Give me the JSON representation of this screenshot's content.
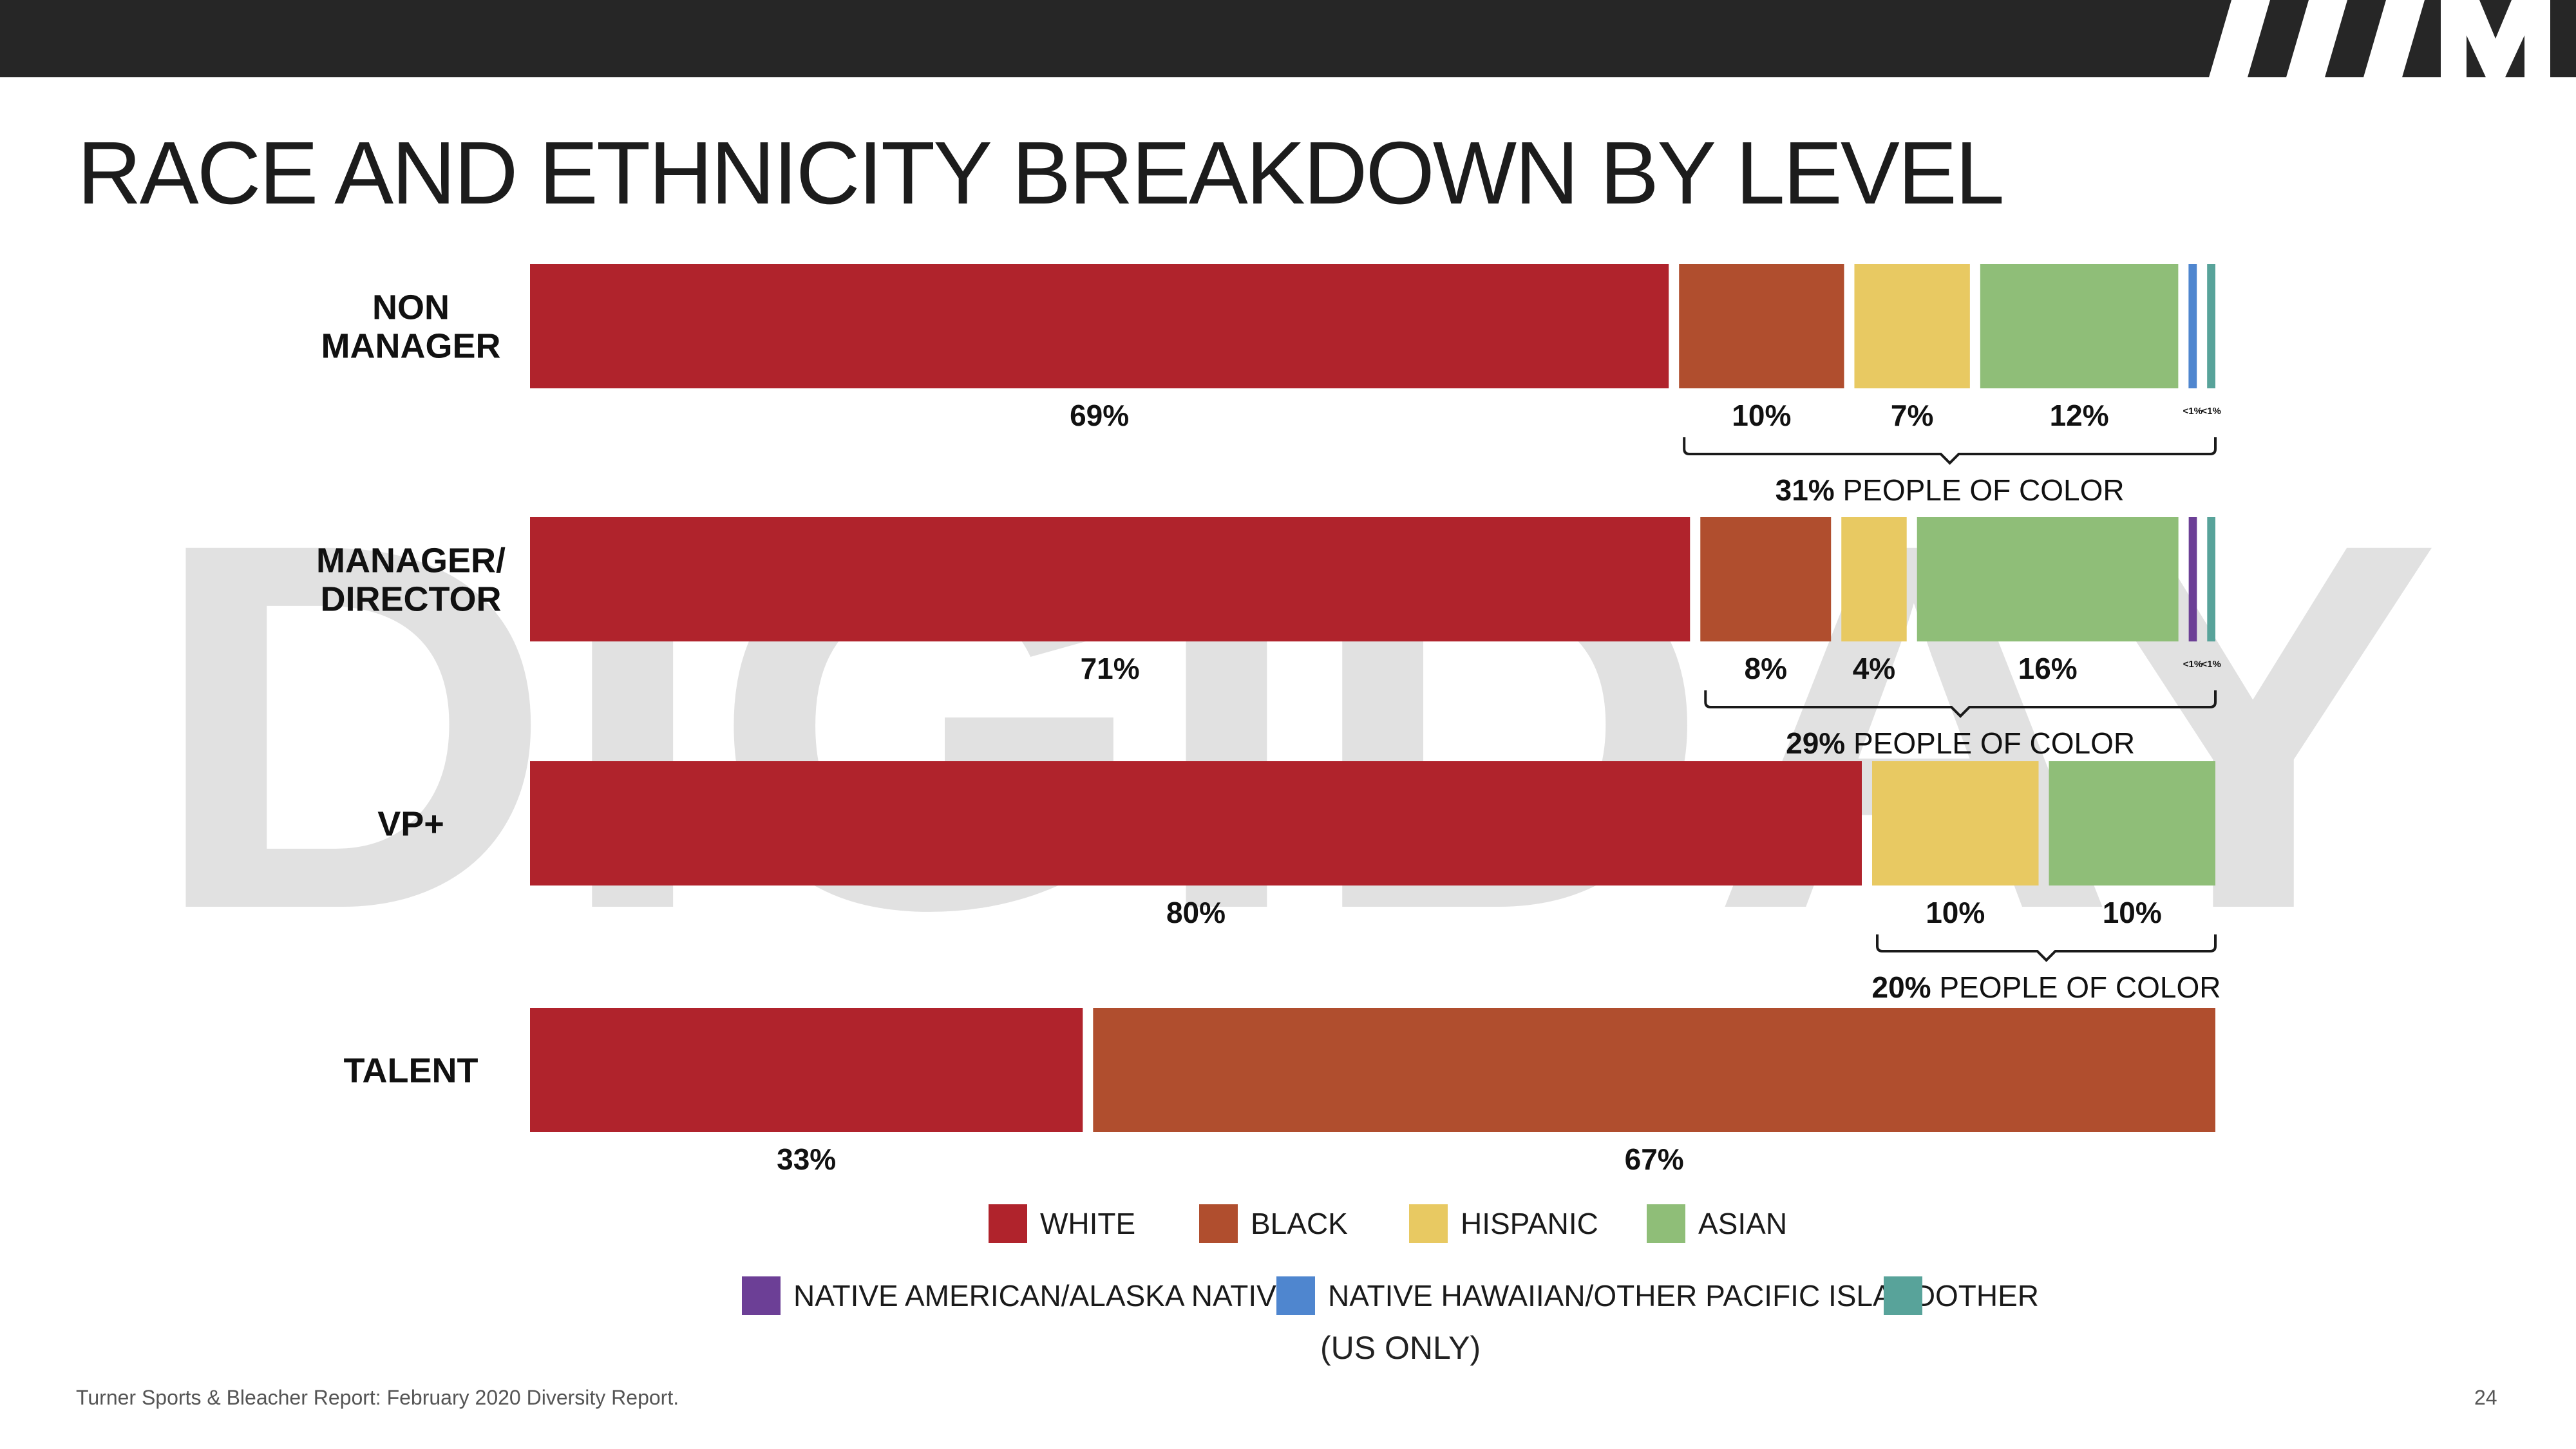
{
  "title": "RACE AND ETHNICITY BREAKDOWN BY LEVEL",
  "watermark": "DIGIDAY",
  "footer": {
    "source": "Turner Sports & Bleacher Report: February 2020 Diversity Report.",
    "page_number": "24",
    "note": "(US ONLY)"
  },
  "colors": {
    "topbar": "#262626",
    "white": "#B0232C",
    "black": "#B04E2E",
    "hispanic": "#E8C962",
    "asian": "#8FBE78",
    "native_american": "#6C3F96",
    "native_hawaiian": "#4F86CF",
    "other": "#58A39A"
  },
  "chart_data": {
    "type": "bar",
    "orientation": "horizontal",
    "stacked": true,
    "normalized_percent": true,
    "title": "RACE AND ETHNICITY BREAKDOWN BY LEVEL",
    "categories": [
      "NON MANAGER",
      "MANAGER/ DIRECTOR",
      "VP+",
      "TALENT"
    ],
    "category_lines": [
      [
        "NON",
        "MANAGER"
      ],
      [
        "MANAGER/",
        "DIRECTOR"
      ],
      [
        "VP+"
      ],
      [
        "TALENT"
      ]
    ],
    "series": [
      {
        "name": "WHITE",
        "key": "white",
        "values": [
          69,
          71,
          80,
          33
        ]
      },
      {
        "name": "BLACK",
        "key": "black",
        "values": [
          10,
          8,
          0,
          67
        ]
      },
      {
        "name": "HISPANIC",
        "key": "hispanic",
        "values": [
          7,
          4,
          10,
          0
        ]
      },
      {
        "name": "ASIAN",
        "key": "asian",
        "values": [
          12,
          16,
          10,
          0
        ]
      },
      {
        "name": "NATIVE AMERICAN/ALASKA NATIVE",
        "key": "native_american",
        "values": [
          0,
          0.5,
          0,
          0
        ]
      },
      {
        "name": "NATIVE HAWAIIAN/OTHER PACIFIC ISLAND",
        "key": "native_hawaiian",
        "values": [
          0.5,
          0,
          0,
          0
        ]
      },
      {
        "name": "OTHER",
        "key": "other",
        "values": [
          0.5,
          0.5,
          0,
          0
        ]
      }
    ],
    "data_labels": [
      [
        "69%",
        "10%",
        "7%",
        "12%",
        "",
        "<1%",
        "<1%"
      ],
      [
        "71%",
        "8%",
        "4%",
        "16%",
        "<1%",
        "",
        "<1%"
      ],
      [
        "80%",
        "",
        "10%",
        "10%",
        "",
        "",
        ""
      ],
      [
        "33%",
        "67%",
        "",
        "",
        "",
        "",
        ""
      ]
    ],
    "people_of_color": [
      {
        "pct": "31%",
        "text": "PEOPLE OF COLOR"
      },
      {
        "pct": "29%",
        "text": "PEOPLE OF COLOR"
      },
      {
        "pct": "20%",
        "text": "PEOPLE OF COLOR"
      },
      null
    ],
    "legend": {
      "row1": [
        "WHITE",
        "BLACK",
        "HISPANIC",
        "ASIAN"
      ],
      "row2": [
        "NATIVE AMERICAN/ALASKA NATIVE",
        "NATIVE HAWAIIAN/OTHER PACIFIC ISLAND",
        "OTHER"
      ],
      "placement": "bottom"
    }
  }
}
